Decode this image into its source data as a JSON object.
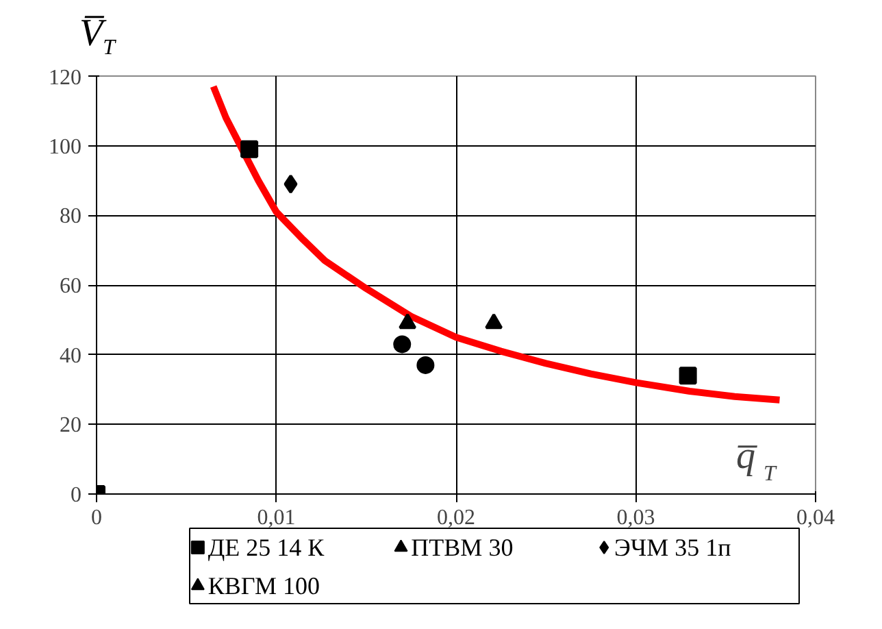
{
  "chart_data": {
    "type": "scatter",
    "xlabel": "q̅$_{Т}$",
    "ylabel": "V̅$_{Т}$",
    "xlim": [
      0,
      0.04
    ],
    "ylim": [
      0,
      120
    ],
    "xticks": [
      {
        "value": 0,
        "label": "0"
      },
      {
        "value": 0.01,
        "label": "0,01"
      },
      {
        "value": 0.02,
        "label": "0,02"
      },
      {
        "value": 0.03,
        "label": "0,03"
      },
      {
        "value": 0.04,
        "label": "0,04"
      }
    ],
    "yticks": [
      0,
      20,
      40,
      60,
      80,
      100,
      120
    ],
    "grid": true,
    "legend": "bottom",
    "series": [
      {
        "type": "line",
        "color": "#ff0000",
        "line_style": "solid",
        "marker": "none",
        "x": [
          0.0065,
          0.0072,
          0.0079,
          0.009,
          0.01,
          0.0115,
          0.0127,
          0.015,
          0.0175,
          0.02,
          0.0225,
          0.025,
          0.0275,
          0.03,
          0.033,
          0.0355,
          0.038
        ],
        "values": [
          117,
          108,
          101,
          90,
          81,
          73,
          67,
          59,
          51,
          45,
          41,
          37.5,
          34.5,
          32,
          29.5,
          28,
          27
        ]
      },
      {
        "name": "ДЕ 25 14 К",
        "color": "#000000",
        "marker": "square",
        "x": [
          0.0329,
          0
        ],
        "values": [
          34,
          0
        ]
      },
      {
        "name": "ПТВМ 30",
        "color": "#000000",
        "marker": "triangle",
        "x": [
          0.0221
        ],
        "values": [
          49
        ]
      },
      {
        "name": "ЭЧМ 35 1п",
        "color": "#000000",
        "marker": "diamond",
        "x": [
          0.0108
        ],
        "values": [
          89
        ]
      },
      {
        "color": "#000000",
        "marker": "square",
        "x": [
          0.0085
        ],
        "values": [
          99
        ]
      },
      {
        "color": "#000000",
        "marker": "circle",
        "x": [
          0.017
        ],
        "values": [
          43
        ]
      },
      {
        "name": "КВГМ 100",
        "color": "#000000",
        "marker": "triangle",
        "x": [
          0.0173
        ],
        "values": [
          49
        ]
      },
      {
        "color": "#000000",
        "marker": "circle",
        "x": [
          0.0183
        ],
        "values": [
          37
        ]
      }
    ]
  }
}
